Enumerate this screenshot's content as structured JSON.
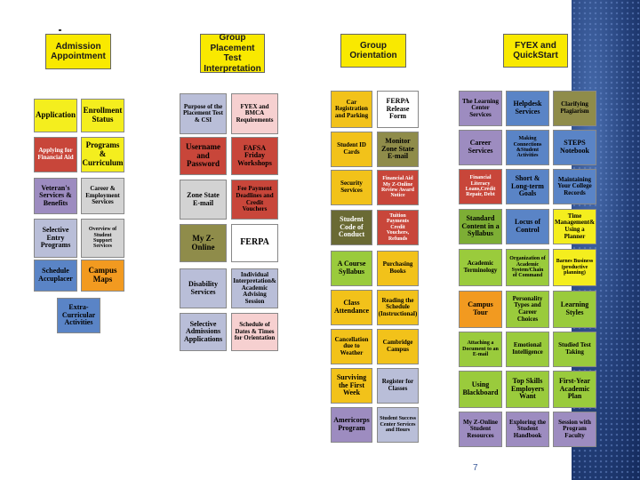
{
  "headers": [
    {
      "text": "Admission\nAppointment"
    },
    {
      "text": "Group Placement\nTest\nInterpretation"
    },
    {
      "text": "Group\nOrientation"
    },
    {
      "text": "FYEX and\nQuickStart"
    }
  ],
  "boxes": [
    {
      "text": "Application",
      "color": "#f4ee1e"
    },
    {
      "text": "Enrollment\nStatus",
      "color": "#f4ee1e"
    },
    {
      "text": "Applying for\nFinancial Aid",
      "color": "#c8463a"
    },
    {
      "text": "Programs\n&\nCurriculum",
      "color": "#f4ee1e"
    },
    {
      "text": "Veteran's\nServices &\nBenefits",
      "color": "#9d8cc0"
    },
    {
      "text": "Career &\nEmployment\nServices",
      "color": "#d3d3d3"
    },
    {
      "text": "Selective\nEntry\nPrograms",
      "color": "#b9bed8"
    },
    {
      "text": "Overview of\nStudent\nSupport\nServices",
      "color": "#d3d3d3"
    },
    {
      "text": "Schedule\nAccuplacer",
      "color": "#5a84c6"
    },
    {
      "text": "Campus\nMaps",
      "color": "#f29a20"
    },
    {
      "text": "Extra-\nCurricular\nActivities",
      "color": "#5a84c6"
    },
    {
      "text": "Purpose of the\nPlacement Test\n& CSI",
      "color": "#b9bed8"
    },
    {
      "text": "FYEX and\nBMCA\nRequirements",
      "color": "#f6d0d0"
    },
    {
      "text": "Username\nand\nPassword",
      "color": "#c8463a"
    },
    {
      "text": "FAFSA\nFriday\nWorkshops",
      "color": "#c8463a"
    },
    {
      "text": "Zone State\nE-mail",
      "color": "#d3d3d3"
    },
    {
      "text": "Fee Payment\nDeadlines and\nCredit\nVouchers",
      "color": "#c8463a"
    },
    {
      "text": "My Z-Online",
      "color": "#8f8c4a"
    },
    {
      "text": "FERPA",
      "color": "#ffffff"
    },
    {
      "text": "Disability\nServices",
      "color": "#b9bed8"
    },
    {
      "text": "Individual\nInterpretation&\nAcademic\nAdvising Session",
      "color": "#b9bed8"
    },
    {
      "text": "Selective\nAdmissions\nApplications",
      "color": "#b9bed8"
    },
    {
      "text": "Schedule of\nDates & Times\nfor Orientation",
      "color": "#f6d0d0"
    },
    {
      "text": "Car\nRegistration\nand Parking",
      "color": "#f2c21a"
    },
    {
      "text": "FERPA\nRelease\nForm",
      "color": "#ffffff"
    },
    {
      "text": "Student ID\nCards",
      "color": "#f2c21a"
    },
    {
      "text": "Monitor\nZone State\nE-mail",
      "color": "#8f8c4a"
    },
    {
      "text": "Security\nServices",
      "color": "#f2c21a"
    },
    {
      "text": "Financial Aid\nMy Z-Online\nReview Award\nNotice",
      "color": "#c8463a"
    },
    {
      "text": "Student\nCode of\nConduct",
      "color": "#6a6a34"
    },
    {
      "text": "Tuition Payments\nCredit Vouchers,\nRefunds",
      "color": "#c8463a"
    },
    {
      "text": "A Course\nSyllabus",
      "color": "#9acb3c"
    },
    {
      "text": "Purchasing\nBooks",
      "color": "#f2c21a"
    },
    {
      "text": "Class\nAttendance",
      "color": "#f2c21a"
    },
    {
      "text": "Reading the\nSchedule\n(Instructional)",
      "color": "#f2c21a"
    },
    {
      "text": "Cancellation\ndue to\nWeather",
      "color": "#f2c21a"
    },
    {
      "text": "Cambridge\nCampus",
      "color": "#f2c21a"
    },
    {
      "text": "Surviving\nthe First\nWeek",
      "color": "#f2c21a"
    },
    {
      "text": "Register for\nClasses",
      "color": "#b9bed8"
    },
    {
      "text": "Americorps\nProgram",
      "color": "#9d8cc0"
    },
    {
      "text": "Student Success\nCenter Services\nand Hours",
      "color": "#b9bed8"
    },
    {
      "text": "The Learning\nCenter\nServices",
      "color": "#9d8cc0"
    },
    {
      "text": "Helpdesk\nServices",
      "color": "#5a84c6"
    },
    {
      "text": "Clarifying\nPlagiarism",
      "color": "#8f8c4a"
    },
    {
      "text": "Career\nServices",
      "color": "#9d8cc0"
    },
    {
      "text": "Making\nConnections\n&Student\nActivities",
      "color": "#5a84c6"
    },
    {
      "text": "STEPS\nNotebook",
      "color": "#5a84c6"
    },
    {
      "text": "Financial\nLiteracy\nLoans,Credit\nRepair, Debt",
      "color": "#c8463a"
    },
    {
      "text": "Short &\nLong-term\nGoals",
      "color": "#5a84c6"
    },
    {
      "text": "Maintaining\nYour College\nRecords",
      "color": "#5a84c6"
    },
    {
      "text": "Standard\nContent in a\nSyllabus",
      "color": "#7dae35"
    },
    {
      "text": "Locus of\nControl",
      "color": "#5a84c6"
    },
    {
      "text": "Time\nManagement&\nUsing a\nPlanner",
      "color": "#f4ee1e"
    },
    {
      "text": "Academic\nTerminology",
      "color": "#9acb3c"
    },
    {
      "text": "Organization of\nAcademic\nSystem/Chain\nof Command",
      "color": "#9acb3c"
    },
    {
      "text": "Barnes Business\n(productive\nplanning)",
      "color": "#f4ee1e"
    },
    {
      "text": "Campus\nTour",
      "color": "#f29a20"
    },
    {
      "text": "Personality\nTypes and\nCareer\nChoices",
      "color": "#9acb3c"
    },
    {
      "text": "Learning\nStyles",
      "color": "#9acb3c"
    },
    {
      "text": "Attaching a\nDocument to an\nE-mail",
      "color": "#9acb3c"
    },
    {
      "text": "Emotional\nIntelligence",
      "color": "#9acb3c"
    },
    {
      "text": "Studied Test\nTaking",
      "color": "#9acb3c"
    },
    {
      "text": "Using\nBlackboard",
      "color": "#9acb3c"
    },
    {
      "text": "Top Skills\nEmployers\nWant",
      "color": "#9acb3c"
    },
    {
      "text": "First-Year\nAcademic\nPlan",
      "color": "#9acb3c"
    },
    {
      "text": "My Z-Online\nStudent\nResources",
      "color": "#9d8cc0"
    },
    {
      "text": "Exploring the\nStudent\nHandbook",
      "color": "#9d8cc0"
    },
    {
      "text": "Session with\nProgram\nFaculty",
      "color": "#9d8cc0"
    }
  ],
  "page_number": "7"
}
